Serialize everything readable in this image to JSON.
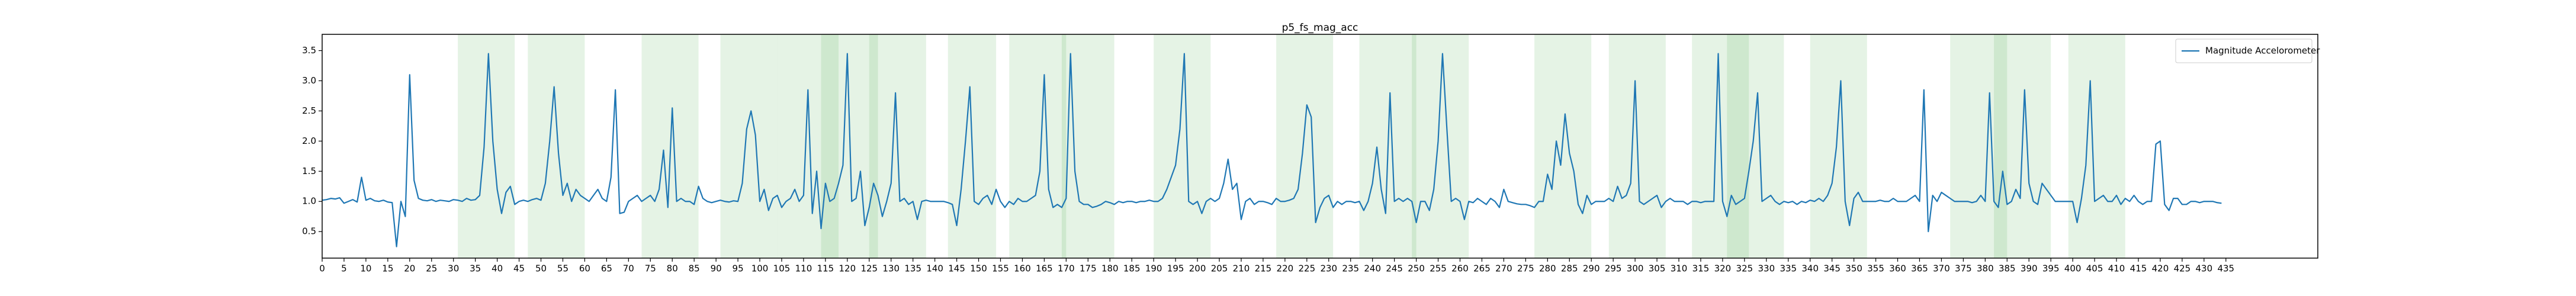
{
  "chart_data": {
    "type": "line",
    "title": "p5_fs_mag_acc",
    "x": [
      0,
      1,
      2,
      3,
      4,
      5,
      6,
      7,
      8,
      9,
      10,
      11,
      12,
      13,
      14,
      15,
      16,
      17,
      18,
      19,
      20,
      21,
      22,
      23,
      24,
      25,
      26,
      27,
      28,
      29,
      30,
      31,
      32,
      33,
      34,
      35,
      36,
      37,
      38,
      39,
      40,
      41,
      42,
      43,
      44,
      45,
      46,
      47,
      48,
      49,
      50,
      51,
      52,
      53,
      54,
      55,
      56,
      57,
      58,
      59,
      60,
      61,
      62,
      63,
      64,
      65,
      66,
      67,
      68,
      69,
      70,
      71,
      72,
      73,
      74,
      75,
      76,
      77,
      78,
      79,
      80,
      81,
      82,
      83,
      84,
      85,
      86,
      87,
      88,
      89,
      90,
      91,
      92,
      93,
      94,
      95,
      96,
      97,
      98,
      99,
      100,
      101,
      102,
      103,
      104,
      105,
      106,
      107,
      108,
      109,
      110,
      111,
      112,
      113,
      114,
      115,
      116,
      117,
      118,
      119,
      120,
      121,
      122,
      123,
      124,
      125,
      126,
      127,
      128,
      129,
      130,
      131,
      132,
      133,
      134,
      135,
      136,
      137,
      138,
      139,
      140,
      141,
      142,
      143,
      144,
      145,
      146,
      147,
      148,
      149,
      150,
      151,
      152,
      153,
      154,
      155,
      156,
      157,
      158,
      159,
      160,
      161,
      162,
      163,
      164,
      165,
      166,
      167,
      168,
      169,
      170,
      171,
      172,
      173,
      174,
      175,
      176,
      177,
      178,
      179,
      180,
      181,
      182,
      183,
      184,
      185,
      186,
      187,
      188,
      189,
      190,
      191,
      192,
      193,
      194,
      195,
      196,
      197,
      198,
      199,
      200,
      201,
      202,
      203,
      204,
      205,
      206,
      207,
      208,
      209,
      210,
      211,
      212,
      213,
      214,
      215,
      216,
      217,
      218,
      219,
      220,
      221,
      222,
      223,
      224,
      225,
      226,
      227,
      228,
      229,
      230,
      231,
      232,
      233,
      234,
      235,
      236,
      237,
      238,
      239,
      240,
      241,
      242,
      243,
      244,
      245,
      246,
      247,
      248,
      249,
      250,
      251,
      252,
      253,
      254,
      255,
      256,
      257,
      258,
      259,
      260,
      261,
      262,
      263,
      264,
      265,
      266,
      267,
      268,
      269,
      270,
      271,
      272,
      273,
      274,
      275,
      276,
      277,
      278,
      279,
      280,
      281,
      282,
      283,
      284,
      285,
      286,
      287,
      288,
      289,
      290,
      291,
      292,
      293,
      294,
      295,
      296,
      297,
      298,
      299,
      300,
      301,
      302,
      303,
      304,
      305,
      306,
      307,
      308,
      309,
      310,
      311,
      312,
      313,
      314,
      315,
      316,
      317,
      318,
      319,
      320,
      321,
      322,
      323,
      324,
      325,
      326,
      327,
      328,
      329,
      330,
      331,
      332,
      333,
      334,
      335,
      336,
      337,
      338,
      339,
      340,
      341,
      342,
      343,
      344,
      345,
      346,
      347,
      348,
      349,
      350,
      351,
      352,
      353,
      354,
      355,
      356,
      357,
      358,
      359,
      360,
      361,
      362,
      363,
      364,
      365,
      366,
      367,
      368,
      369,
      370,
      371,
      372,
      373,
      374,
      375,
      376,
      377,
      378,
      379,
      380,
      381,
      382,
      383,
      384,
      385,
      386,
      387,
      388,
      389,
      390,
      391,
      392,
      393,
      394,
      395,
      396,
      397,
      398,
      399,
      400,
      401,
      402,
      403,
      404,
      405,
      406,
      407,
      408,
      409,
      410,
      411,
      412,
      413,
      414,
      415,
      416,
      417,
      418,
      419,
      420,
      421,
      422,
      423,
      424,
      425,
      426,
      427,
      428,
      429,
      430,
      431,
      432,
      433,
      434
    ],
    "series": [
      {
        "name": "Magnitude Accelorometer",
        "color": "#1f77b4",
        "values": [
          1.02,
          1.03,
          1.05,
          1.04,
          1.06,
          0.97,
          1.0,
          1.03,
          0.99,
          1.4,
          1.02,
          1.05,
          1.01,
          1.0,
          1.02,
          0.99,
          0.98,
          0.25,
          1.0,
          0.75,
          3.1,
          1.35,
          1.05,
          1.02,
          1.01,
          1.03,
          1.0,
          1.02,
          1.01,
          1.0,
          1.03,
          1.02,
          1.0,
          1.05,
          1.02,
          1.03,
          1.1,
          1.9,
          3.45,
          2.0,
          1.2,
          0.8,
          1.15,
          1.25,
          0.95,
          1.0,
          1.02,
          1.0,
          1.03,
          1.05,
          1.02,
          1.3,
          2.0,
          2.9,
          1.8,
          1.1,
          1.3,
          1.0,
          1.2,
          1.1,
          1.05,
          1.0,
          1.1,
          1.2,
          1.05,
          1.0,
          1.4,
          2.85,
          0.8,
          0.82,
          1.0,
          1.05,
          1.1,
          1.0,
          1.05,
          1.1,
          1.0,
          1.2,
          1.85,
          0.9,
          2.55,
          1.0,
          1.05,
          1.0,
          1.0,
          0.95,
          1.25,
          1.05,
          1.0,
          0.98,
          1.0,
          1.02,
          1.0,
          0.99,
          1.01,
          1.0,
          1.3,
          2.2,
          2.5,
          2.1,
          1.0,
          1.2,
          0.85,
          1.05,
          1.1,
          0.9,
          1.0,
          1.05,
          1.2,
          1.0,
          1.1,
          2.85,
          0.8,
          1.5,
          0.55,
          1.3,
          1.0,
          1.05,
          1.3,
          1.6,
          3.45,
          1.0,
          1.05,
          1.5,
          0.6,
          0.9,
          1.3,
          1.1,
          0.75,
          1.0,
          1.3,
          2.8,
          1.0,
          1.05,
          0.95,
          1.0,
          0.7,
          1.0,
          1.02,
          1.0,
          1.0,
          1.0,
          1.0,
          0.98,
          0.95,
          0.6,
          1.2,
          2.0,
          2.9,
          1.0,
          0.95,
          1.05,
          1.1,
          0.95,
          1.2,
          1.0,
          0.9,
          1.0,
          0.95,
          1.05,
          1.0,
          1.0,
          1.05,
          1.1,
          1.5,
          3.1,
          1.2,
          0.9,
          0.95,
          0.9,
          1.05,
          3.45,
          1.5,
          1.0,
          0.95,
          0.95,
          0.9,
          0.92,
          0.95,
          1.0,
          0.98,
          0.95,
          1.0,
          0.98,
          1.0,
          1.0,
          0.98,
          1.0,
          1.0,
          1.02,
          1.0,
          1.0,
          1.05,
          1.2,
          1.4,
          1.6,
          2.2,
          3.45,
          1.0,
          0.95,
          1.0,
          0.8,
          1.0,
          1.05,
          1.0,
          1.05,
          1.3,
          1.7,
          1.2,
          1.3,
          0.7,
          1.0,
          1.05,
          0.95,
          1.0,
          1.0,
          0.98,
          0.95,
          1.05,
          1.0,
          1.0,
          1.02,
          1.05,
          1.2,
          1.8,
          2.6,
          2.4,
          0.65,
          0.9,
          1.05,
          1.1,
          0.9,
          1.0,
          0.95,
          1.0,
          1.0,
          0.98,
          1.0,
          0.85,
          1.0,
          1.3,
          1.9,
          1.2,
          0.8,
          2.8,
          1.0,
          1.05,
          1.0,
          1.05,
          1.0,
          0.65,
          1.0,
          1.0,
          0.85,
          1.2,
          2.0,
          3.45,
          2.2,
          1.0,
          1.05,
          1.0,
          0.7,
          1.0,
          0.98,
          1.05,
          1.0,
          0.95,
          1.05,
          1.0,
          0.9,
          1.2,
          1.0,
          0.98,
          0.96,
          0.95,
          0.95,
          0.93,
          0.9,
          1.0,
          1.0,
          1.45,
          1.2,
          2.0,
          1.6,
          2.45,
          1.8,
          1.5,
          0.95,
          0.8,
          1.1,
          0.95,
          1.0,
          1.0,
          1.0,
          1.05,
          1.0,
          1.25,
          1.05,
          1.1,
          1.3,
          3.0,
          1.0,
          0.95,
          1.0,
          1.05,
          1.1,
          0.9,
          1.0,
          1.05,
          1.0,
          1.0,
          1.0,
          0.95,
          1.0,
          1.0,
          0.98,
          1.0,
          1.0,
          1.0,
          3.45,
          1.0,
          0.75,
          1.1,
          0.95,
          1.0,
          1.05,
          1.5,
          2.0,
          2.8,
          1.0,
          1.05,
          1.1,
          1.0,
          0.95,
          1.0,
          0.98,
          1.0,
          0.95,
          1.0,
          0.98,
          1.02,
          1.0,
          1.05,
          1.0,
          1.1,
          1.3,
          1.9,
          3.0,
          1.0,
          0.6,
          1.05,
          1.15,
          1.0,
          1.0,
          1.0,
          1.0,
          1.02,
          1.0,
          1.0,
          1.05,
          1.0,
          1.0,
          1.0,
          1.05,
          1.1,
          1.0,
          2.85,
          0.5,
          1.1,
          1.0,
          1.15,
          1.1,
          1.05,
          1.0,
          1.0,
          1.0,
          1.0,
          0.98,
          1.0,
          1.1,
          1.0,
          2.8,
          1.0,
          0.9,
          1.5,
          0.95,
          1.0,
          1.2,
          1.05,
          2.85,
          1.3,
          1.0,
          0.95,
          1.3,
          1.2,
          1.1,
          1.0,
          1.0,
          1.0,
          1.0,
          1.0,
          0.65,
          1.05,
          1.6,
          3.0,
          1.0,
          1.05,
          1.1,
          1.0,
          1.0,
          1.1,
          0.95,
          1.05,
          1.0,
          1.1,
          1.0,
          0.95,
          1.0,
          1.0,
          1.95,
          2.0,
          0.95,
          0.85,
          1.05,
          1.05,
          0.95,
          0.95,
          1.0,
          1.0,
          0.98,
          1.0,
          1.0,
          1.0,
          0.98,
          0.97
        ]
      }
    ],
    "spans": [
      [
        31,
        44
      ],
      [
        47,
        60
      ],
      [
        73,
        86
      ],
      [
        91,
        104
      ],
      [
        104,
        118
      ],
      [
        114,
        127
      ],
      [
        125,
        138
      ],
      [
        143,
        154
      ],
      [
        157,
        170
      ],
      [
        169,
        181
      ],
      [
        190,
        203
      ],
      [
        218,
        231
      ],
      [
        237,
        250
      ],
      [
        249,
        262
      ],
      [
        277,
        290
      ],
      [
        294,
        307
      ],
      [
        313,
        326
      ],
      [
        321,
        334
      ],
      [
        340,
        353
      ],
      [
        372,
        385
      ],
      [
        382,
        395
      ],
      [
        399,
        412
      ]
    ],
    "span_color": "#2ca02c",
    "span_alpha": 0.12,
    "xlim": [
      0,
      456
    ],
    "ylim": [
      0.06,
      3.77
    ],
    "xticks": [
      0,
      5,
      10,
      15,
      20,
      25,
      30,
      35,
      40,
      45,
      50,
      55,
      60,
      65,
      70,
      75,
      80,
      85,
      90,
      95,
      100,
      105,
      110,
      115,
      120,
      125,
      130,
      135,
      140,
      145,
      150,
      155,
      160,
      165,
      170,
      175,
      180,
      185,
      190,
      195,
      200,
      205,
      210,
      215,
      220,
      225,
      230,
      235,
      240,
      245,
      250,
      255,
      260,
      265,
      270,
      275,
      280,
      285,
      290,
      295,
      300,
      305,
      310,
      315,
      320,
      325,
      330,
      335,
      340,
      345,
      350,
      355,
      360,
      365,
      370,
      375,
      380,
      385,
      390,
      395,
      400,
      405,
      410,
      415,
      420,
      425,
      430,
      435
    ],
    "yticks": [
      0.5,
      {
        "value": 1,
        "label": "1.0"
      },
      1.5,
      {
        "value": 2,
        "label": "2.0"
      },
      2.5,
      {
        "value": 3,
        "label": "3.0"
      },
      3.5
    ],
    "legend": "upper right",
    "grid": false
  }
}
